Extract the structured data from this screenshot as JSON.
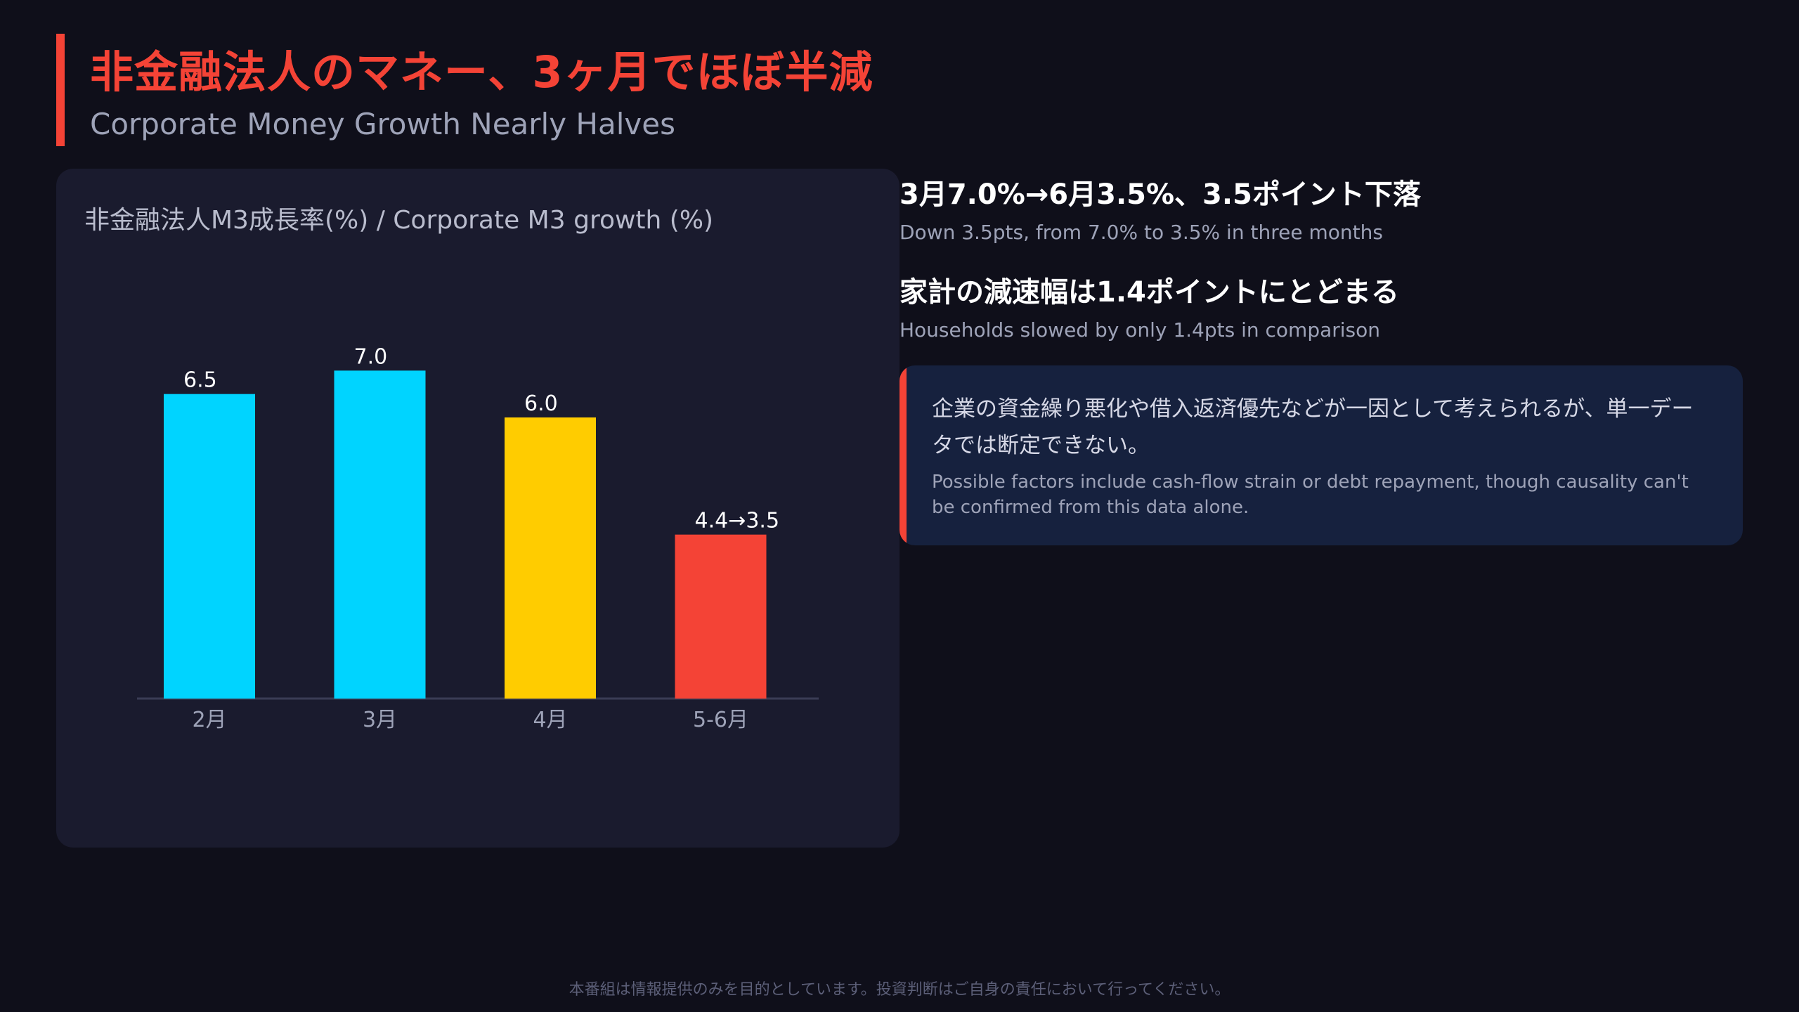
{
  "header": {
    "title": "非金融法人のマネー、3ヶ月でほぼ半減",
    "subtitle": "Corporate Money Growth Nearly Halves"
  },
  "chart_card": {
    "title": "非金融法人M3成長率(%) / Corporate M3 growth (%)"
  },
  "chart_data": {
    "type": "bar",
    "title": "非金融法人M3成長率(%) / Corporate M3 growth (%)",
    "categories": [
      "2月",
      "3月",
      "4月",
      "5-6月"
    ],
    "values": [
      6.5,
      7.0,
      6.0,
      3.5
    ],
    "data_labels": [
      "6.5",
      "7.0",
      "6.0",
      "4.4→3.5"
    ],
    "colors": [
      "#00d4ff",
      "#00d4ff",
      "#ffcc00",
      "#f44336"
    ],
    "ylim": [
      0,
      9
    ],
    "grid": false,
    "xlabel": "",
    "ylabel": ""
  },
  "points": [
    {
      "head": "3月7.0%→6月3.5%、3.5ポイント下落",
      "sub": "Down 3.5pts, from 7.0% to 3.5% in three months"
    },
    {
      "head": "家計の減速幅は1.4ポイントにとどまる",
      "sub": "Households slowed by only 1.4pts in comparison"
    }
  ],
  "note": {
    "jp": "企業の資金繰り悪化や借入返済優先などが一因として考えられるが、単一データでは断定できない。",
    "en": "Possible factors include cash-flow strain or debt repayment, though causality can't be confirmed from this data alone."
  },
  "footer": "本番組は情報提供のみを目的としています。投資判断はご自身の責任において行ってください。",
  "colors": {
    "background": "#0f0f1a",
    "card": "#1a1b2e",
    "accent_red": "#f44336",
    "bar_cyan": "#00d4ff",
    "bar_yellow": "#ffcc00"
  }
}
